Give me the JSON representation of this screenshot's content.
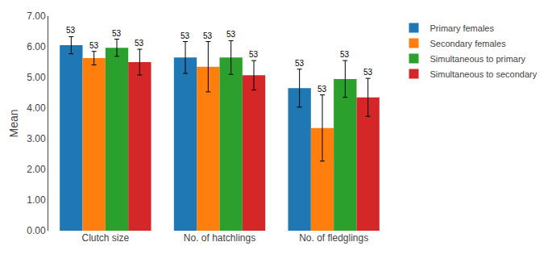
{
  "chart_data": {
    "type": "bar",
    "categories": [
      "Clutch size",
      "No. of hatchlings",
      "No. of fledglings"
    ],
    "ylabel": "Mean",
    "series": [
      {
        "name": "Primary females",
        "values": [
          6.05,
          5.65,
          4.65
        ],
        "errors": [
          0.28,
          0.52,
          0.62
        ],
        "annotations": [
          "53",
          "53",
          "53"
        ]
      },
      {
        "name": "Secondary females",
        "values": [
          5.63,
          5.35,
          3.35
        ],
        "errors": [
          0.22,
          0.82,
          1.08
        ],
        "annotations": [
          "53",
          "53",
          "53"
        ]
      },
      {
        "name": "Simultaneous to primary",
        "values": [
          5.97,
          5.65,
          4.95
        ],
        "errors": [
          0.28,
          0.55,
          0.6
        ],
        "annotations": [
          "53",
          "53",
          "53"
        ]
      },
      {
        "name": "Simultaneous to secondary",
        "values": [
          5.5,
          5.07,
          4.35
        ],
        "errors": [
          0.42,
          0.48,
          0.62
        ],
        "annotations": [
          "53",
          "53",
          "53"
        ]
      }
    ],
    "ylim": [
      0.0,
      7.0
    ],
    "yticks": [
      {
        "value": 0,
        "label": "0.00"
      },
      {
        "value": 1,
        "label": "1.00"
      },
      {
        "value": 2,
        "label": "2.00"
      },
      {
        "value": 3,
        "label": "3.00"
      },
      {
        "value": 4,
        "label": "4.00"
      },
      {
        "value": 5,
        "label": "5.00"
      },
      {
        "value": 6,
        "label": "6.00"
      },
      {
        "value": 7,
        "label": "7.00"
      }
    ],
    "grid": false,
    "legend": "right"
  }
}
